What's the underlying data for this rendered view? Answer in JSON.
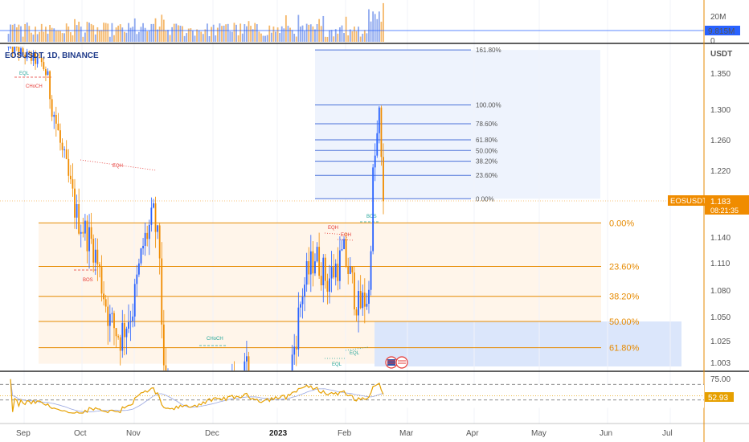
{
  "colors": {
    "up": "#2962ff",
    "down": "#f08c00",
    "fib_blue": "#4a72d9",
    "fib_orange": "#e68a00",
    "bos_red": "#e53935",
    "eq_green": "#26a69a",
    "rsi": "#e6a000",
    "rsi_ma": "#9aa7e0",
    "zone_blue": "#dbe6fb",
    "zone_orange": "#fff5ea"
  },
  "header": {
    "symbol_label": "EOSUSDT, 1D, BINANCE",
    "currency": "USDT"
  },
  "volume_pane": {
    "ticks": [
      "20M",
      "0"
    ],
    "current_label": "9.815M"
  },
  "price_pane": {
    "ticks": [
      "1.350",
      "1.300",
      "1.260",
      "1.220",
      "1.140",
      "1.110",
      "1.080",
      "1.050",
      "1.025",
      "1.003"
    ],
    "last_price_label": "1.183",
    "ticker_label": "EOSUSDT",
    "countdown": "08:21:35"
  },
  "rsi_pane": {
    "ticks": [
      "75.00"
    ],
    "current_label": "52.93"
  },
  "time_axis": {
    "labels": [
      "Sep",
      "Oct",
      "Nov",
      "Dec",
      "2023",
      "Feb",
      "Mar",
      "Apr",
      "May",
      "Jun",
      "Jul"
    ],
    "bold": "2023"
  },
  "fib_upper": {
    "levels": [
      "161.80%",
      "100.00%",
      "78.60%",
      "61.80%",
      "50.00%",
      "38.20%",
      "23.60%",
      "0.00%"
    ]
  },
  "fib_lower": {
    "levels": [
      "0.00%",
      "23.60%",
      "38.20%",
      "50.00%",
      "61.80%"
    ]
  },
  "annotations": {
    "eql_top": "EQL",
    "choch_top": "CHoCH",
    "eqh_sep": "EQH",
    "bos_oct": "BOS",
    "choch_dec": "CHoCH",
    "eqh_feb1": "EQH",
    "eqh_feb2": "EQH",
    "bos_feb": "BOS",
    "eql_feb1": "EQL",
    "eql_feb2": "EQL"
  },
  "chart_data": {
    "type": "candlestick",
    "symbol": "EOSUSDT",
    "timeframe": "1D",
    "exchange": "BINANCE",
    "last_price": 1.183,
    "volume_last": "9.815M",
    "rsi_last": 52.93,
    "y_ticks": [
      1.35,
      1.3,
      1.26,
      1.22,
      1.14,
      1.11,
      1.08,
      1.05,
      1.025,
      1.003
    ],
    "price_waypoints": [
      [
        "2022-08-25",
        1.43
      ],
      [
        "2022-09-03",
        1.4
      ],
      [
        "2022-09-10",
        1.38
      ],
      [
        "2022-09-20",
        1.24
      ],
      [
        "2022-09-27",
        1.165
      ],
      [
        "2022-10-05",
        1.13
      ],
      [
        "2022-10-13",
        1.045
      ],
      [
        "2022-10-18",
        1.03
      ],
      [
        "2022-10-24",
        1.06
      ],
      [
        "2022-10-29",
        1.13
      ],
      [
        "2022-11-03",
        1.165
      ],
      [
        "2022-11-06",
        1.12
      ],
      [
        "2022-11-08",
        0.98
      ],
      [
        "2022-11-22",
        0.93
      ],
      [
        "2022-12-08",
        0.96
      ],
      [
        "2022-12-18",
        0.99
      ],
      [
        "2022-12-25",
        0.94
      ],
      [
        "2023-01-06",
        0.96
      ],
      [
        "2023-01-14",
        1.08
      ],
      [
        "2023-01-20",
        1.12
      ],
      [
        "2023-01-26",
        1.09
      ],
      [
        "2023-02-03",
        1.12
      ],
      [
        "2023-02-10",
        1.06
      ],
      [
        "2023-02-15",
        1.075
      ],
      [
        "2023-02-17",
        1.21
      ],
      [
        "2023-02-20",
        1.29
      ],
      [
        "2023-02-21",
        1.226
      ],
      [
        "2023-02-22",
        1.183
      ]
    ],
    "fib_upper_levels": [
      {
        "label": "161.80%",
        "price": 1.42
      },
      {
        "label": "100.00%",
        "price": 1.306
      },
      {
        "label": "78.60%",
        "price": 1.281
      },
      {
        "label": "61.80%",
        "price": 1.26
      },
      {
        "label": "50.00%",
        "price": 1.246
      },
      {
        "label": "38.20%",
        "price": 1.232
      },
      {
        "label": "23.60%",
        "price": 1.214
      },
      {
        "label": "0.00%",
        "price": 1.186
      }
    ],
    "fib_lower_levels": [
      {
        "label": "0.00%",
        "price": 1.157
      },
      {
        "label": "23.60%",
        "price": 1.106
      },
      {
        "label": "38.20%",
        "price": 1.073
      },
      {
        "label": "50.00%",
        "price": 1.045
      },
      {
        "label": "61.80%",
        "price": 1.018
      }
    ],
    "rsi_levels": [
      75,
      52.93
    ]
  }
}
